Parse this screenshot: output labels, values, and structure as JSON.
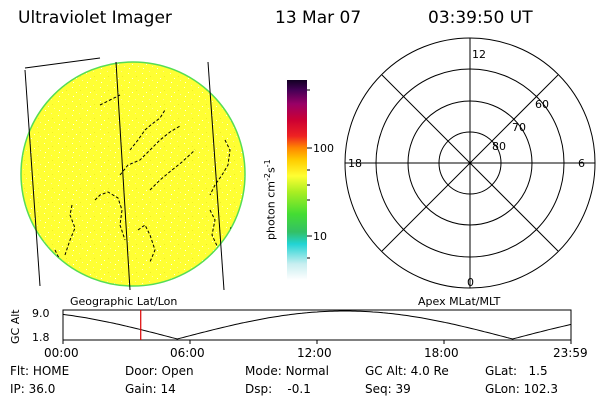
{
  "header": {
    "instrument": "Ultraviolet Imager",
    "date": "13 Mar 07",
    "time": "03:39:50 UT"
  },
  "colorbar": {
    "label": "photon cm",
    "label_sup": "-2",
    "label_s": "s",
    "label_sup2": "-1",
    "tick_100": "100",
    "tick_10": "10"
  },
  "polar": {
    "mlt_top": "12",
    "mlt_left": "18",
    "mlt_right": "6",
    "mlt_bottom": "0",
    "lat_60": "60",
    "lat_70": "70",
    "lat_80": "80"
  },
  "image_caption": "Geographic Lat/Lon",
  "polar_caption": "Apex MLat/MLT",
  "orbit_plot": {
    "ylabel": "GC Alt",
    "ytick_top": "9.0",
    "ytick_bottom": "1.8",
    "time_ticks": [
      "00:00",
      "06:00",
      "12:00",
      "18:00",
      "23:59"
    ],
    "current_time_fraction": 0.153
  },
  "footer": {
    "row1": [
      {
        "label": "Flt:",
        "value": "HOME"
      },
      {
        "label": "Door:",
        "value": "Open"
      },
      {
        "label": "Mode:",
        "value": "Normal"
      },
      {
        "label": "GC Alt:",
        "value": "4.0 Re"
      },
      {
        "label": "GLat:",
        "value": "1.5"
      }
    ],
    "row2": [
      {
        "label": "IP:",
        "value": "36.0"
      },
      {
        "label": "Gain:",
        "value": "14"
      },
      {
        "label": "Dsp:",
        "value": "-0.1"
      },
      {
        "label": "Seq:",
        "value": "39"
      },
      {
        "label": "GLon:",
        "value": "102.3"
      }
    ]
  },
  "colors": {
    "disk": "#ffff33",
    "disk_edge": "#55dd55"
  }
}
